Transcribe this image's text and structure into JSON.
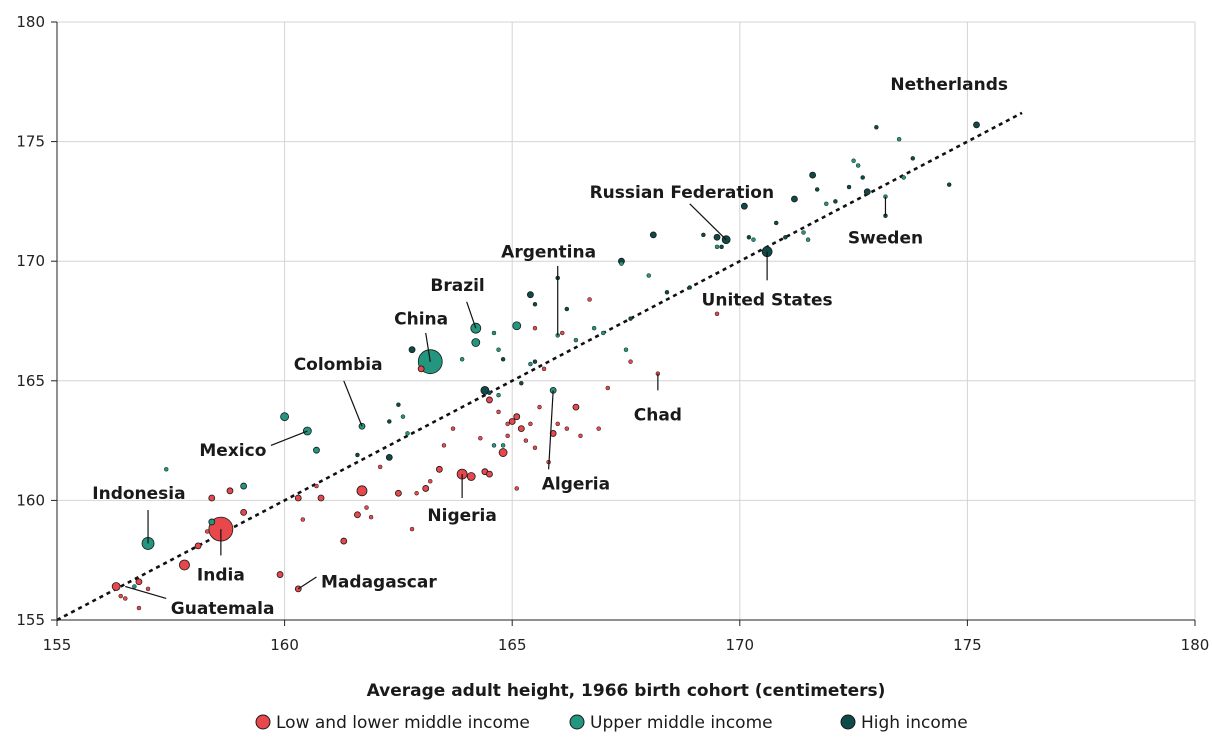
{
  "chart_data": {
    "type": "scatter",
    "title": "",
    "xlabel": "Average adult height, 1966 birth cohort (centimeters)",
    "ylabel": "",
    "xlim": [
      155,
      180
    ],
    "ylim": [
      155,
      180
    ],
    "xticks": [
      "155",
      "160",
      "165",
      "170",
      "175",
      "180"
    ],
    "yticks": [
      "155",
      "160",
      "165",
      "170",
      "175",
      "180"
    ],
    "grid": true,
    "legend_position": "bottom",
    "colors": {
      "low": "#e8474c",
      "upper": "#23967f",
      "high": "#0e4a47"
    },
    "trendline": {
      "from": [
        155,
        155
      ],
      "to": [
        176.2,
        176.2
      ],
      "style": "dotted"
    },
    "series": [
      {
        "name": "Low and lower middle income",
        "key": "low",
        "points": [
          [
            156.3,
            156.4,
            4
          ],
          [
            156.8,
            156.6,
            3
          ],
          [
            156.4,
            156.0,
            2
          ],
          [
            156.5,
            155.9,
            2
          ],
          [
            156.8,
            155.5,
            2
          ],
          [
            157.0,
            156.3,
            2
          ],
          [
            157.8,
            157.3,
            5
          ],
          [
            158.1,
            158.1,
            3
          ],
          [
            158.3,
            158.7,
            2
          ],
          [
            158.6,
            158.8,
            12
          ],
          [
            158.4,
            160.1,
            3
          ],
          [
            158.8,
            160.4,
            3
          ],
          [
            159.1,
            159.5,
            3
          ],
          [
            159.9,
            156.9,
            3
          ],
          [
            160.3,
            156.3,
            3
          ],
          [
            160.3,
            160.1,
            3
          ],
          [
            160.4,
            159.2,
            2
          ],
          [
            160.8,
            160.1,
            3
          ],
          [
            160.7,
            160.6,
            2
          ],
          [
            161.3,
            158.3,
            3
          ],
          [
            161.7,
            160.4,
            5
          ],
          [
            161.6,
            159.4,
            3
          ],
          [
            161.8,
            159.7,
            2
          ],
          [
            161.9,
            159.3,
            2
          ],
          [
            162.1,
            161.4,
            2
          ],
          [
            162.5,
            160.3,
            3
          ],
          [
            162.8,
            158.8,
            2
          ],
          [
            162.9,
            160.3,
            2
          ],
          [
            163.1,
            160.5,
            3
          ],
          [
            163.2,
            160.8,
            2
          ],
          [
            163.4,
            161.3,
            3
          ],
          [
            163.5,
            162.3,
            2
          ],
          [
            163.0,
            165.5,
            3
          ],
          [
            163.7,
            163.0,
            2
          ],
          [
            163.9,
            161.1,
            5
          ],
          [
            164.1,
            161.0,
            4
          ],
          [
            164.3,
            162.6,
            2
          ],
          [
            164.4,
            161.2,
            3
          ],
          [
            164.5,
            161.1,
            3
          ],
          [
            164.5,
            164.2,
            3
          ],
          [
            164.7,
            163.7,
            2
          ],
          [
            164.8,
            162.0,
            4
          ],
          [
            164.9,
            162.7,
            2
          ],
          [
            164.9,
            163.2,
            2
          ],
          [
            165.0,
            163.3,
            3
          ],
          [
            165.1,
            163.5,
            3
          ],
          [
            165.2,
            163.0,
            3
          ],
          [
            165.1,
            160.5,
            2
          ],
          [
            165.3,
            162.5,
            2
          ],
          [
            165.4,
            163.2,
            2
          ],
          [
            165.5,
            162.2,
            2
          ],
          [
            165.7,
            165.5,
            2
          ],
          [
            165.8,
            161.6,
            2
          ],
          [
            165.6,
            163.9,
            2
          ],
          [
            165.9,
            162.8,
            3
          ],
          [
            166.0,
            163.2,
            2
          ],
          [
            166.2,
            163.0,
            2
          ],
          [
            166.4,
            163.9,
            3
          ],
          [
            166.5,
            162.7,
            2
          ],
          [
            166.9,
            163.0,
            2
          ],
          [
            167.1,
            164.7,
            2
          ],
          [
            166.1,
            167.0,
            2
          ],
          [
            165.5,
            167.2,
            2
          ],
          [
            166.7,
            168.4,
            2
          ],
          [
            167.6,
            165.8,
            2
          ],
          [
            168.2,
            165.3,
            2
          ],
          [
            169.5,
            167.8,
            2
          ]
        ]
      },
      {
        "name": "Upper middle income",
        "key": "upper",
        "points": [
          [
            157.0,
            158.2,
            6
          ],
          [
            156.7,
            156.4,
            2
          ],
          [
            157.4,
            161.3,
            2
          ],
          [
            158.4,
            159.1,
            3
          ],
          [
            159.1,
            160.6,
            3
          ],
          [
            160.0,
            163.5,
            4
          ],
          [
            160.5,
            162.9,
            4
          ],
          [
            160.7,
            162.1,
            3
          ],
          [
            161.7,
            163.1,
            3
          ],
          [
            162.6,
            163.5,
            2
          ],
          [
            162.7,
            162.8,
            2
          ],
          [
            163.2,
            165.8,
            12
          ],
          [
            163.9,
            165.9,
            2
          ],
          [
            164.2,
            166.6,
            4
          ],
          [
            164.2,
            167.2,
            5
          ],
          [
            164.6,
            167.0,
            2
          ],
          [
            164.7,
            166.3,
            2
          ],
          [
            164.6,
            162.3,
            2
          ],
          [
            164.7,
            164.4,
            2
          ],
          [
            164.8,
            162.3,
            2
          ],
          [
            165.1,
            167.3,
            4
          ],
          [
            165.4,
            165.7,
            2
          ],
          [
            165.9,
            164.6,
            3
          ],
          [
            166.0,
            166.9,
            2
          ],
          [
            166.4,
            166.7,
            2
          ],
          [
            166.8,
            167.2,
            2
          ],
          [
            167.0,
            167.0,
            2
          ],
          [
            167.4,
            169.9,
            2
          ],
          [
            167.5,
            166.3,
            2
          ],
          [
            168.0,
            169.4,
            2
          ],
          [
            169.5,
            170.6,
            2
          ],
          [
            170.3,
            170.9,
            2
          ],
          [
            171.4,
            171.2,
            2
          ],
          [
            171.5,
            170.9,
            2
          ],
          [
            171.9,
            172.4,
            2
          ],
          [
            172.5,
            174.2,
            2
          ],
          [
            172.6,
            174.0,
            2
          ],
          [
            173.2,
            172.7,
            2
          ],
          [
            173.6,
            173.5,
            2
          ],
          [
            173.5,
            175.1,
            2
          ]
        ]
      },
      {
        "name": "High income",
        "key": "high",
        "points": [
          [
            161.6,
            161.9,
            2
          ],
          [
            162.3,
            161.8,
            3
          ],
          [
            162.5,
            164.0,
            2
          ],
          [
            162.3,
            163.3,
            2
          ],
          [
            162.8,
            166.3,
            3
          ],
          [
            164.4,
            164.6,
            4
          ],
          [
            164.8,
            165.9,
            2
          ],
          [
            165.5,
            165.8,
            2
          ],
          [
            165.2,
            164.9,
            2
          ],
          [
            165.4,
            168.6,
            3
          ],
          [
            165.5,
            168.2,
            2
          ],
          [
            166.0,
            169.3,
            2
          ],
          [
            167.4,
            170.0,
            3
          ],
          [
            167.6,
            167.6,
            2
          ],
          [
            168.1,
            171.1,
            3
          ],
          [
            168.4,
            168.7,
            2
          ],
          [
            168.9,
            168.9,
            2
          ],
          [
            169.2,
            171.1,
            2
          ],
          [
            169.5,
            171.0,
            3
          ],
          [
            169.6,
            170.6,
            2
          ],
          [
            169.7,
            170.9,
            4
          ],
          [
            170.1,
            172.3,
            3
          ],
          [
            170.2,
            171.0,
            2
          ],
          [
            170.6,
            170.4,
            5
          ],
          [
            170.8,
            171.6,
            2
          ],
          [
            171.0,
            171.0,
            2
          ],
          [
            171.2,
            172.6,
            3
          ],
          [
            171.6,
            173.6,
            3
          ],
          [
            171.7,
            173.0,
            2
          ],
          [
            172.1,
            172.5,
            2
          ],
          [
            172.4,
            173.1,
            2
          ],
          [
            172.7,
            173.5,
            2
          ],
          [
            172.8,
            172.9,
            3
          ],
          [
            173.0,
            175.6,
            2
          ],
          [
            173.2,
            171.9,
            2
          ],
          [
            173.8,
            174.3,
            2
          ],
          [
            174.6,
            173.2,
            2
          ],
          [
            175.2,
            175.7,
            3
          ],
          [
            166.2,
            168.0,
            2
          ],
          [
            164.5,
            164.5,
            2
          ]
        ]
      }
    ],
    "annotations": [
      {
        "text": "Netherlands",
        "point": [
          175.2,
          175.6
        ],
        "label_at": [
          174.6,
          177.4
        ],
        "anchor": "middle",
        "line": false
      },
      {
        "text": "Russian Federation",
        "point": [
          169.7,
          170.9
        ],
        "label_at": [
          166.7,
          172.9
        ],
        "anchor": "start",
        "line": true,
        "line_from": [
          168.9,
          172.4
        ]
      },
      {
        "text": "Sweden",
        "point": [
          173.2,
          172.7
        ],
        "label_at": [
          173.2,
          171.0
        ],
        "anchor": "middle",
        "line": true,
        "line_from": [
          173.2,
          171.9
        ]
      },
      {
        "text": "Argentina",
        "point": [
          166.0,
          166.9
        ],
        "label_at": [
          165.8,
          170.4
        ],
        "anchor": "middle",
        "line": true,
        "line_from": [
          166.0,
          169.8
        ]
      },
      {
        "text": "United States",
        "point": [
          170.6,
          170.4
        ],
        "label_at": [
          170.6,
          168.4
        ],
        "anchor": "middle",
        "line": true,
        "line_from": [
          170.6,
          169.2
        ]
      },
      {
        "text": "Brazil",
        "point": [
          164.2,
          167.2
        ],
        "label_at": [
          163.8,
          169.0
        ],
        "anchor": "middle",
        "line": true,
        "line_from": [
          164.0,
          168.3
        ]
      },
      {
        "text": "China",
        "point": [
          163.2,
          165.8
        ],
        "label_at": [
          163.0,
          167.6
        ],
        "anchor": "middle",
        "line": true,
        "line_from": [
          163.1,
          167.0
        ]
      },
      {
        "text": "Colombia",
        "point": [
          161.7,
          163.1
        ],
        "label_at": [
          160.2,
          165.7
        ],
        "anchor": "start",
        "line": true,
        "line_from": [
          161.3,
          165.0
        ]
      },
      {
        "text": "Chad",
        "point": [
          168.2,
          165.3
        ],
        "label_at": [
          168.2,
          163.6
        ],
        "anchor": "middle",
        "line": true,
        "line_from": [
          168.2,
          164.6
        ]
      },
      {
        "text": "Mexico",
        "point": [
          160.5,
          162.9
        ],
        "label_at": [
          159.6,
          162.1
        ],
        "anchor": "end",
        "line": true,
        "line_from": [
          159.7,
          162.3
        ]
      },
      {
        "text": "Algeria",
        "point": [
          165.9,
          164.6
        ],
        "label_at": [
          166.4,
          160.7
        ],
        "anchor": "middle",
        "line": true,
        "line_from": [
          165.8,
          161.3
        ]
      },
      {
        "text": "Nigeria",
        "point": [
          163.9,
          161.1
        ],
        "label_at": [
          163.9,
          159.4
        ],
        "anchor": "middle",
        "line": true,
        "line_from": [
          163.9,
          160.1
        ]
      },
      {
        "text": "Indonesia",
        "point": [
          157.0,
          158.2
        ],
        "label_at": [
          156.8,
          160.3
        ],
        "anchor": "middle",
        "line": true,
        "line_from": [
          157.0,
          159.6
        ]
      },
      {
        "text": "India",
        "point": [
          158.6,
          158.8
        ],
        "label_at": [
          158.6,
          156.9
        ],
        "anchor": "middle",
        "line": true,
        "line_from": [
          158.6,
          157.7
        ]
      },
      {
        "text": "Madagascar",
        "point": [
          160.3,
          156.3
        ],
        "label_at": [
          160.8,
          156.6
        ],
        "anchor": "start",
        "line": true,
        "line_from": [
          160.7,
          156.8
        ]
      },
      {
        "text": "Guatemala",
        "point": [
          156.5,
          156.4
        ],
        "label_at": [
          157.5,
          155.5
        ],
        "anchor": "start",
        "line": true,
        "line_from": [
          157.4,
          155.9
        ]
      }
    ]
  }
}
